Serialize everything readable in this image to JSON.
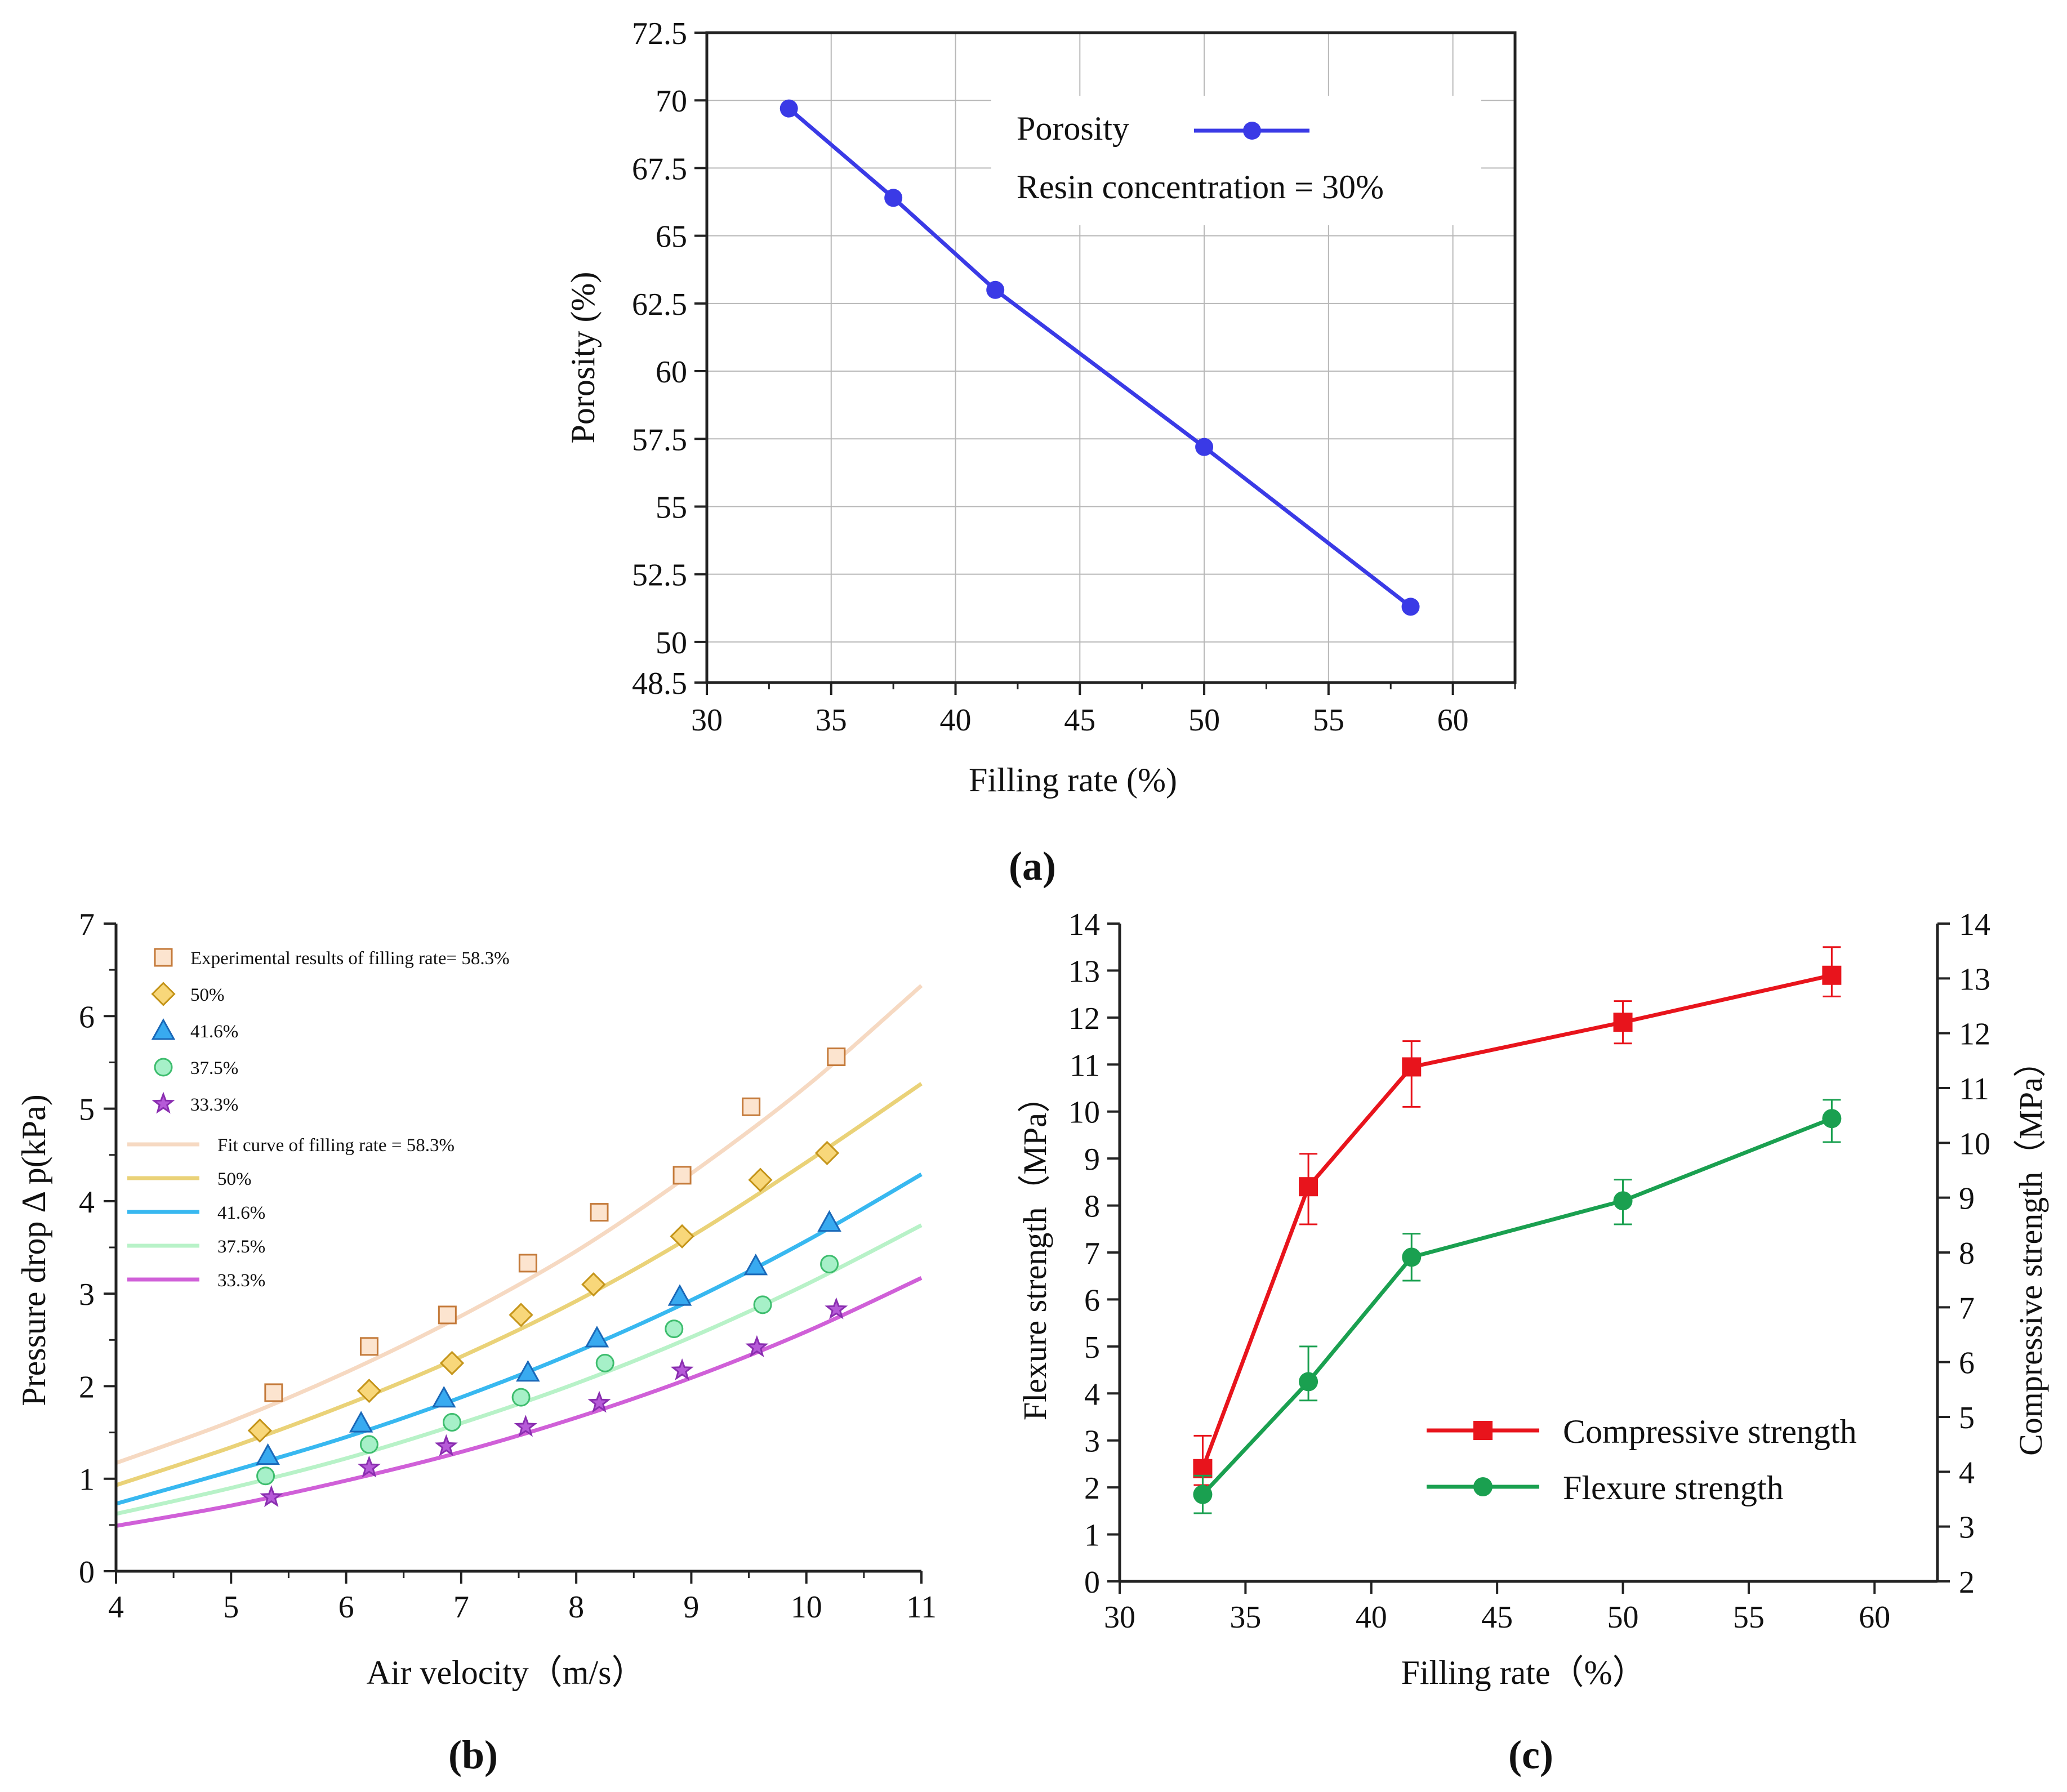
{
  "chart_data": [
    {
      "type": "line",
      "panel_label": "(a)",
      "xlabel": "Filling rate (%)",
      "ylabel": "Porosity (%)",
      "xlim": [
        30,
        62.5
      ],
      "ylim": [
        48.5,
        72.5
      ],
      "xticks": [
        30,
        35,
        40,
        45,
        50,
        55,
        60
      ],
      "yticks": [
        48.5,
        50,
        52.5,
        55,
        57.5,
        60,
        62.5,
        65,
        67.5,
        70,
        72.5
      ],
      "grid": true,
      "legend_position": "top-right",
      "annotation": "Resin concentration  = 30%",
      "series": [
        {
          "name": "Porosity",
          "color": "#3a3ae6",
          "marker": "circle",
          "x": [
            33.3,
            37.5,
            41.6,
            50,
            58.3
          ],
          "y": [
            69.7,
            66.4,
            63.0,
            57.2,
            51.3
          ]
        }
      ]
    },
    {
      "type": "scatter",
      "panel_label": "(b)",
      "xlabel": "Air velocity（m/s）",
      "ylabel": "Pressure drop Δ p(kPa)",
      "xlim": [
        4,
        11
      ],
      "ylim": [
        0,
        7
      ],
      "xticks": [
        4,
        5,
        6,
        7,
        8,
        9,
        10,
        11
      ],
      "yticks": [
        0,
        1,
        2,
        3,
        4,
        5,
        6,
        7
      ],
      "grid": false,
      "legend_position": "top-left",
      "series": [
        {
          "name": "Experimental results of filling rate= 58.3%",
          "marker": "square",
          "fill": "#fce4cf",
          "stroke": "#c47a3a",
          "x": [
            5.37,
            6.2,
            6.88,
            7.58,
            8.2,
            8.92,
            9.52,
            10.26
          ],
          "y": [
            1.93,
            2.43,
            2.77,
            3.33,
            3.88,
            4.28,
            5.02,
            5.56
          ]
        },
        {
          "name": "50%",
          "marker": "diamond",
          "fill": "#f8d77a",
          "stroke": "#c49419",
          "x": [
            5.25,
            6.2,
            6.92,
            7.52,
            8.15,
            8.92,
            9.6,
            10.18
          ],
          "y": [
            1.52,
            1.95,
            2.25,
            2.77,
            3.1,
            3.62,
            4.23,
            4.52
          ]
        },
        {
          "name": "41.6%",
          "marker": "triangle",
          "fill": "#38aaf0",
          "stroke": "#1a68b8",
          "x": [
            5.32,
            6.13,
            6.85,
            7.58,
            8.18,
            8.9,
            9.56,
            10.2
          ],
          "y": [
            1.25,
            1.6,
            1.87,
            2.15,
            2.52,
            2.97,
            3.3,
            3.77
          ]
        },
        {
          "name": "37.5%",
          "marker": "circle",
          "fill": "#a6f0c8",
          "stroke": "#3ebd6e",
          "x": [
            5.3,
            6.2,
            6.92,
            7.52,
            8.25,
            8.85,
            9.62,
            10.2
          ],
          "y": [
            1.03,
            1.37,
            1.61,
            1.88,
            2.25,
            2.62,
            2.88,
            3.32
          ]
        },
        {
          "name": "33.3%",
          "marker": "star",
          "fill": "#b65ad8",
          "stroke": "#8a2eb0",
          "x": [
            5.35,
            6.2,
            6.87,
            7.56,
            8.2,
            8.92,
            9.57,
            10.26
          ],
          "y": [
            0.8,
            1.12,
            1.35,
            1.56,
            1.82,
            2.17,
            2.42,
            2.83
          ]
        }
      ],
      "fit_curves": [
        {
          "name": "Fit curve of filling rate = 58.3%",
          "color": "#f6d9c2",
          "x": [
            4,
            5,
            6,
            7,
            8,
            9,
            10,
            11
          ],
          "y": [
            1.17,
            1.62,
            2.15,
            2.76,
            3.46,
            4.3,
            5.24,
            6.33
          ]
        },
        {
          "name": "50%",
          "color": "#ead278",
          "x": [
            4,
            5,
            6,
            7,
            8,
            9,
            10,
            11
          ],
          "y": [
            0.93,
            1.34,
            1.8,
            2.32,
            2.92,
            3.62,
            4.42,
            5.27
          ]
        },
        {
          "name": "41.6%",
          "color": "#38b8f0",
          "x": [
            4,
            5,
            6,
            7,
            8,
            9,
            10,
            11
          ],
          "y": [
            0.73,
            1.08,
            1.45,
            1.88,
            2.37,
            2.93,
            3.57,
            4.29
          ]
        },
        {
          "name": "37.5%",
          "color": "#b8f2c8",
          "x": [
            4,
            5,
            6,
            7,
            8,
            9,
            10,
            11
          ],
          "y": [
            0.62,
            0.9,
            1.22,
            1.6,
            2.03,
            2.53,
            3.1,
            3.74
          ]
        },
        {
          "name": "33.3%",
          "color": "#d060d8",
          "x": [
            4,
            5,
            6,
            7,
            8,
            9,
            10,
            11
          ],
          "y": [
            0.49,
            0.71,
            0.98,
            1.29,
            1.66,
            2.09,
            2.59,
            3.17
          ]
        }
      ]
    },
    {
      "type": "line",
      "panel_label": "(c)",
      "xlabel": "Filling rate（%）",
      "ylabel": "Flexure strength（MPa）",
      "ylabel_right": "Compressive strength（MPa）",
      "xlim": [
        30,
        62.5
      ],
      "ylim": [
        0,
        14
      ],
      "ylim_right": [
        2,
        14
      ],
      "xticks": [
        30,
        35,
        40,
        45,
        50,
        55,
        60
      ],
      "yticks": [
        0,
        1,
        2,
        3,
        4,
        5,
        6,
        7,
        8,
        9,
        10,
        11,
        12,
        13,
        14
      ],
      "yticks_right": [
        2,
        3,
        4,
        5,
        6,
        7,
        8,
        9,
        10,
        11,
        12,
        13,
        14
      ],
      "grid": false,
      "legend_position": "bottom-right",
      "series": [
        {
          "name": "Compressive strength",
          "color": "#e8141c",
          "marker": "square",
          "x": [
            33.3,
            37.5,
            41.6,
            50,
            58.3
          ],
          "y": [
            2.4,
            8.4,
            10.95,
            11.9,
            12.9
          ],
          "err_low": [
            2.05,
            7.6,
            10.1,
            11.45,
            12.45
          ],
          "err_high": [
            3.1,
            9.1,
            11.5,
            12.35,
            13.5
          ]
        },
        {
          "name": "Flexure strength",
          "color": "#1aa050",
          "marker": "circle",
          "x": [
            33.3,
            37.5,
            41.6,
            50,
            58.3
          ],
          "y": [
            1.85,
            4.25,
            6.9,
            8.1,
            9.85
          ],
          "err_low": [
            1.45,
            3.85,
            6.4,
            7.6,
            9.35
          ],
          "err_high": [
            2.25,
            5.0,
            7.4,
            8.55,
            10.25
          ]
        }
      ]
    }
  ]
}
